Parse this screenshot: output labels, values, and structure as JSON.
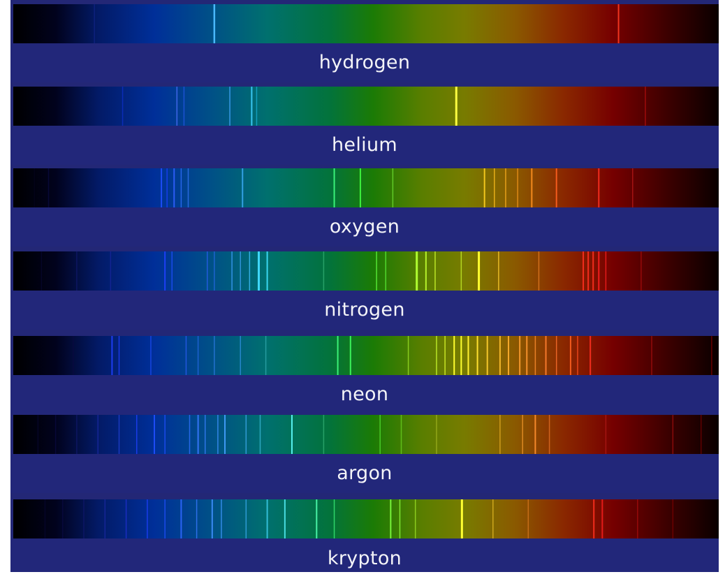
{
  "title": "",
  "spectra": [
    {
      "name": "hydrogen",
      "lines": [
        {
          "pos": 0.285,
          "color": "#4ab8ff",
          "width": 2.5,
          "opacity": 1.0
        },
        {
          "pos": 0.858,
          "color": "#ff3a22",
          "width": 2.0,
          "opacity": 0.9
        },
        {
          "pos": 0.115,
          "color": "#1a2a9a",
          "width": 1.5,
          "opacity": 0.5
        }
      ]
    },
    {
      "name": "helium",
      "lines": [
        {
          "pos": 0.155,
          "color": "#1030d0",
          "width": 1.5,
          "opacity": 0.7
        },
        {
          "pos": 0.232,
          "color": "#4f6fff",
          "width": 1.5,
          "opacity": 0.8
        },
        {
          "pos": 0.242,
          "color": "#2f5fff",
          "width": 1.5,
          "opacity": 0.6
        },
        {
          "pos": 0.307,
          "color": "#45a8ff",
          "width": 1.5,
          "opacity": 0.8
        },
        {
          "pos": 0.338,
          "color": "#3fd0ff",
          "width": 2.0,
          "opacity": 0.9
        },
        {
          "pos": 0.345,
          "color": "#20c0ef",
          "width": 1.5,
          "opacity": 0.6
        },
        {
          "pos": 0.628,
          "color": "#ffff40",
          "width": 3.0,
          "opacity": 1.0
        },
        {
          "pos": 0.896,
          "color": "#d01010",
          "width": 1.5,
          "opacity": 0.6
        }
      ]
    },
    {
      "name": "oxygen",
      "lines": [
        {
          "pos": 0.03,
          "color": "#03021a",
          "width": 1.5,
          "opacity": 0.9
        },
        {
          "pos": 0.05,
          "color": "#0a0a40",
          "width": 1.5,
          "opacity": 0.8
        },
        {
          "pos": 0.21,
          "color": "#2050ff",
          "width": 2.0,
          "opacity": 0.9
        },
        {
          "pos": 0.218,
          "color": "#1a40ff",
          "width": 1.5,
          "opacity": 0.8
        },
        {
          "pos": 0.228,
          "color": "#3060ff",
          "width": 2.0,
          "opacity": 0.9
        },
        {
          "pos": 0.238,
          "color": "#3070ff",
          "width": 1.5,
          "opacity": 0.8
        },
        {
          "pos": 0.248,
          "color": "#3878ff",
          "width": 1.5,
          "opacity": 0.7
        },
        {
          "pos": 0.325,
          "color": "#3fb0ff",
          "width": 2.0,
          "opacity": 0.8
        },
        {
          "pos": 0.455,
          "color": "#40ff80",
          "width": 2.0,
          "opacity": 0.9
        },
        {
          "pos": 0.492,
          "color": "#40ff40",
          "width": 2.0,
          "opacity": 0.9
        },
        {
          "pos": 0.538,
          "color": "#80ff40",
          "width": 1.5,
          "opacity": 0.6
        },
        {
          "pos": 0.668,
          "color": "#ffd020",
          "width": 2.0,
          "opacity": 0.9
        },
        {
          "pos": 0.682,
          "color": "#ffc020",
          "width": 1.5,
          "opacity": 0.8
        },
        {
          "pos": 0.698,
          "color": "#ffb020",
          "width": 1.5,
          "opacity": 0.8
        },
        {
          "pos": 0.715,
          "color": "#ffa020",
          "width": 1.5,
          "opacity": 0.7
        },
        {
          "pos": 0.735,
          "color": "#ff9020",
          "width": 2.0,
          "opacity": 0.9
        },
        {
          "pos": 0.77,
          "color": "#ff6020",
          "width": 2.0,
          "opacity": 0.9
        },
        {
          "pos": 0.83,
          "color": "#ff3020",
          "width": 2.0,
          "opacity": 0.9
        },
        {
          "pos": 0.878,
          "color": "#d02020",
          "width": 1.5,
          "opacity": 0.6
        }
      ]
    },
    {
      "name": "nitrogen",
      "lines": [
        {
          "pos": 0.04,
          "color": "#05052a",
          "width": 1.5,
          "opacity": 0.9
        },
        {
          "pos": 0.09,
          "color": "#10186a",
          "width": 1.5,
          "opacity": 0.8
        },
        {
          "pos": 0.138,
          "color": "#1a25a0",
          "width": 1.5,
          "opacity": 0.7
        },
        {
          "pos": 0.215,
          "color": "#2040ff",
          "width": 2.0,
          "opacity": 0.9
        },
        {
          "pos": 0.225,
          "color": "#2050ff",
          "width": 1.5,
          "opacity": 0.8
        },
        {
          "pos": 0.275,
          "color": "#3060ff",
          "width": 1.5,
          "opacity": 0.7
        },
        {
          "pos": 0.285,
          "color": "#3070ff",
          "width": 1.5,
          "opacity": 0.6
        },
        {
          "pos": 0.31,
          "color": "#40a0ff",
          "width": 1.5,
          "opacity": 0.8
        },
        {
          "pos": 0.322,
          "color": "#45a8ff",
          "width": 1.5,
          "opacity": 0.7
        },
        {
          "pos": 0.335,
          "color": "#40c0ff",
          "width": 1.5,
          "opacity": 0.8
        },
        {
          "pos": 0.348,
          "color": "#40d8ff",
          "width": 3.0,
          "opacity": 1.0
        },
        {
          "pos": 0.36,
          "color": "#40e0ff",
          "width": 2.0,
          "opacity": 0.9
        },
        {
          "pos": 0.44,
          "color": "#40c080",
          "width": 1.5,
          "opacity": 0.6
        },
        {
          "pos": 0.515,
          "color": "#60ff40",
          "width": 1.5,
          "opacity": 0.8
        },
        {
          "pos": 0.528,
          "color": "#60ff40",
          "width": 1.5,
          "opacity": 0.7
        },
        {
          "pos": 0.572,
          "color": "#b0ff30",
          "width": 3.0,
          "opacity": 1.0
        },
        {
          "pos": 0.585,
          "color": "#c0ff30",
          "width": 2.0,
          "opacity": 0.9
        },
        {
          "pos": 0.598,
          "color": "#d0ff30",
          "width": 1.5,
          "opacity": 0.8
        },
        {
          "pos": 0.635,
          "color": "#d0ff30",
          "width": 1.5,
          "opacity": 0.7
        },
        {
          "pos": 0.66,
          "color": "#ffff30",
          "width": 3.0,
          "opacity": 1.0
        },
        {
          "pos": 0.688,
          "color": "#ffd030",
          "width": 1.5,
          "opacity": 0.8
        },
        {
          "pos": 0.745,
          "color": "#ff9030",
          "width": 1.5,
          "opacity": 0.6
        },
        {
          "pos": 0.808,
          "color": "#ff3020",
          "width": 2.0,
          "opacity": 0.9
        },
        {
          "pos": 0.815,
          "color": "#ff3020",
          "width": 2.0,
          "opacity": 0.9
        },
        {
          "pos": 0.822,
          "color": "#ff3020",
          "width": 2.0,
          "opacity": 0.9
        },
        {
          "pos": 0.83,
          "color": "#ff2020",
          "width": 2.0,
          "opacity": 0.9
        },
        {
          "pos": 0.84,
          "color": "#ff2020",
          "width": 1.5,
          "opacity": 0.8
        },
        {
          "pos": 0.89,
          "color": "#c01010",
          "width": 1.5,
          "opacity": 0.6
        }
      ]
    },
    {
      "name": "neon",
      "lines": [
        {
          "pos": 0.085,
          "color": "#0a0a40",
          "width": 1.5,
          "opacity": 0.8
        },
        {
          "pos": 0.14,
          "color": "#2040ff",
          "width": 2.0,
          "opacity": 0.9
        },
        {
          "pos": 0.15,
          "color": "#2040ff",
          "width": 1.5,
          "opacity": 0.8
        },
        {
          "pos": 0.195,
          "color": "#2050ff",
          "width": 1.5,
          "opacity": 0.7
        },
        {
          "pos": 0.245,
          "color": "#3060ff",
          "width": 1.5,
          "opacity": 0.7
        },
        {
          "pos": 0.262,
          "color": "#3070ff",
          "width": 1.5,
          "opacity": 0.6
        },
        {
          "pos": 0.285,
          "color": "#3888ff",
          "width": 1.5,
          "opacity": 0.6
        },
        {
          "pos": 0.322,
          "color": "#40a0ff",
          "width": 1.5,
          "opacity": 0.6
        },
        {
          "pos": 0.358,
          "color": "#40b8c0",
          "width": 1.5,
          "opacity": 0.6
        },
        {
          "pos": 0.46,
          "color": "#40ff80",
          "width": 2.0,
          "opacity": 0.9
        },
        {
          "pos": 0.478,
          "color": "#40ff60",
          "width": 2.0,
          "opacity": 0.9
        },
        {
          "pos": 0.56,
          "color": "#b0ff30",
          "width": 1.5,
          "opacity": 0.6
        },
        {
          "pos": 0.6,
          "color": "#d0ff30",
          "width": 1.5,
          "opacity": 0.8
        },
        {
          "pos": 0.612,
          "color": "#e0ff30",
          "width": 1.5,
          "opacity": 0.8
        },
        {
          "pos": 0.625,
          "color": "#ffff30",
          "width": 2.0,
          "opacity": 1.0
        },
        {
          "pos": 0.635,
          "color": "#ffff30",
          "width": 2.0,
          "opacity": 1.0
        },
        {
          "pos": 0.645,
          "color": "#fff030",
          "width": 2.0,
          "opacity": 1.0
        },
        {
          "pos": 0.658,
          "color": "#ffe030",
          "width": 2.0,
          "opacity": 1.0
        },
        {
          "pos": 0.672,
          "color": "#ffd030",
          "width": 2.0,
          "opacity": 0.9
        },
        {
          "pos": 0.69,
          "color": "#ffc030",
          "width": 2.0,
          "opacity": 0.9
        },
        {
          "pos": 0.702,
          "color": "#ffb030",
          "width": 2.0,
          "opacity": 0.9
        },
        {
          "pos": 0.718,
          "color": "#ffa030",
          "width": 2.0,
          "opacity": 0.9
        },
        {
          "pos": 0.728,
          "color": "#ff9830",
          "width": 2.0,
          "opacity": 0.9
        },
        {
          "pos": 0.74,
          "color": "#ff9030",
          "width": 1.5,
          "opacity": 0.8
        },
        {
          "pos": 0.755,
          "color": "#ff8030",
          "width": 2.0,
          "opacity": 0.9
        },
        {
          "pos": 0.77,
          "color": "#ff7030",
          "width": 1.5,
          "opacity": 0.8
        },
        {
          "pos": 0.79,
          "color": "#ff6020",
          "width": 2.0,
          "opacity": 0.9
        },
        {
          "pos": 0.8,
          "color": "#ff5020",
          "width": 1.5,
          "opacity": 0.8
        },
        {
          "pos": 0.818,
          "color": "#ff3020",
          "width": 2.0,
          "opacity": 0.9
        },
        {
          "pos": 0.905,
          "color": "#c01010",
          "width": 1.5,
          "opacity": 0.6
        },
        {
          "pos": 0.99,
          "color": "#a00000",
          "width": 1.5,
          "opacity": 0.6
        }
      ]
    },
    {
      "name": "argon",
      "lines": [
        {
          "pos": 0.035,
          "color": "#05052a",
          "width": 1.5,
          "opacity": 0.9
        },
        {
          "pos": 0.06,
          "color": "#0a0a40",
          "width": 1.5,
          "opacity": 0.8
        },
        {
          "pos": 0.09,
          "color": "#10186a",
          "width": 1.5,
          "opacity": 0.8
        },
        {
          "pos": 0.12,
          "color": "#1a28a0",
          "width": 1.5,
          "opacity": 0.8
        },
        {
          "pos": 0.15,
          "color": "#2040d0",
          "width": 1.5,
          "opacity": 0.8
        },
        {
          "pos": 0.175,
          "color": "#2040ff",
          "width": 1.5,
          "opacity": 0.8
        },
        {
          "pos": 0.2,
          "color": "#2050ff",
          "width": 2.0,
          "opacity": 0.9
        },
        {
          "pos": 0.215,
          "color": "#2050ff",
          "width": 1.5,
          "opacity": 0.8
        },
        {
          "pos": 0.25,
          "color": "#3070ff",
          "width": 1.5,
          "opacity": 0.8
        },
        {
          "pos": 0.262,
          "color": "#3878ff",
          "width": 2.0,
          "opacity": 0.9
        },
        {
          "pos": 0.272,
          "color": "#3880ff",
          "width": 1.5,
          "opacity": 0.8
        },
        {
          "pos": 0.29,
          "color": "#4090ff",
          "width": 1.5,
          "opacity": 0.8
        },
        {
          "pos": 0.3,
          "color": "#45a0ff",
          "width": 2.0,
          "opacity": 0.9
        },
        {
          "pos": 0.33,
          "color": "#45b0ff",
          "width": 1.5,
          "opacity": 0.7
        },
        {
          "pos": 0.35,
          "color": "#40c0e0",
          "width": 1.5,
          "opacity": 0.7
        },
        {
          "pos": 0.395,
          "color": "#60ffff",
          "width": 2.0,
          "opacity": 0.9
        },
        {
          "pos": 0.44,
          "color": "#40c080",
          "width": 1.5,
          "opacity": 0.6
        },
        {
          "pos": 0.52,
          "color": "#60ff40",
          "width": 1.5,
          "opacity": 0.6
        },
        {
          "pos": 0.55,
          "color": "#80ff30",
          "width": 1.5,
          "opacity": 0.5
        },
        {
          "pos": 0.6,
          "color": "#c0d030",
          "width": 1.5,
          "opacity": 0.5
        },
        {
          "pos": 0.69,
          "color": "#ffc030",
          "width": 1.5,
          "opacity": 0.6
        },
        {
          "pos": 0.722,
          "color": "#ffa030",
          "width": 1.5,
          "opacity": 0.7
        },
        {
          "pos": 0.74,
          "color": "#ff9030",
          "width": 2.0,
          "opacity": 0.9
        },
        {
          "pos": 0.76,
          "color": "#ff8030",
          "width": 1.5,
          "opacity": 0.6
        },
        {
          "pos": 0.84,
          "color": "#c02020",
          "width": 1.5,
          "opacity": 0.6
        },
        {
          "pos": 0.935,
          "color": "#c01010",
          "width": 1.5,
          "opacity": 0.6
        },
        {
          "pos": 0.975,
          "color": "#a00000",
          "width": 1.5,
          "opacity": 0.5
        }
      ]
    },
    {
      "name": "krypton",
      "lines": [
        {
          "pos": 0.045,
          "color": "#05052a",
          "width": 1.5,
          "opacity": 0.9
        },
        {
          "pos": 0.07,
          "color": "#0a0a40",
          "width": 1.5,
          "opacity": 0.8
        },
        {
          "pos": 0.1,
          "color": "#10186a",
          "width": 1.5,
          "opacity": 0.8
        },
        {
          "pos": 0.13,
          "color": "#1a28a0",
          "width": 1.5,
          "opacity": 0.8
        },
        {
          "pos": 0.16,
          "color": "#2030d0",
          "width": 1.5,
          "opacity": 0.8
        },
        {
          "pos": 0.19,
          "color": "#2040ff",
          "width": 1.5,
          "opacity": 0.8
        },
        {
          "pos": 0.215,
          "color": "#2050ff",
          "width": 1.5,
          "opacity": 0.8
        },
        {
          "pos": 0.238,
          "color": "#3068ff",
          "width": 2.0,
          "opacity": 0.9
        },
        {
          "pos": 0.26,
          "color": "#3878ff",
          "width": 1.5,
          "opacity": 0.8
        },
        {
          "pos": 0.282,
          "color": "#4090ff",
          "width": 2.0,
          "opacity": 0.9
        },
        {
          "pos": 0.295,
          "color": "#4098ff",
          "width": 1.5,
          "opacity": 0.8
        },
        {
          "pos": 0.33,
          "color": "#40b0ff",
          "width": 1.5,
          "opacity": 0.7
        },
        {
          "pos": 0.36,
          "color": "#40d0f0",
          "width": 2.0,
          "opacity": 0.8
        },
        {
          "pos": 0.385,
          "color": "#50e8f0",
          "width": 2.0,
          "opacity": 0.9
        },
        {
          "pos": 0.43,
          "color": "#50ffb0",
          "width": 2.0,
          "opacity": 0.9
        },
        {
          "pos": 0.455,
          "color": "#40ff80",
          "width": 1.5,
          "opacity": 0.7
        },
        {
          "pos": 0.535,
          "color": "#80ff40",
          "width": 2.0,
          "opacity": 0.9
        },
        {
          "pos": 0.548,
          "color": "#90ff40",
          "width": 1.5,
          "opacity": 0.8
        },
        {
          "pos": 0.57,
          "color": "#b0ff30",
          "width": 1.5,
          "opacity": 0.6
        },
        {
          "pos": 0.636,
          "color": "#ffff30",
          "width": 3.0,
          "opacity": 1.0
        },
        {
          "pos": 0.68,
          "color": "#ffd030",
          "width": 1.5,
          "opacity": 0.6
        },
        {
          "pos": 0.73,
          "color": "#ff9030",
          "width": 1.5,
          "opacity": 0.5
        },
        {
          "pos": 0.823,
          "color": "#ff3020",
          "width": 2.0,
          "opacity": 0.9
        },
        {
          "pos": 0.835,
          "color": "#ff2020",
          "width": 2.0,
          "opacity": 0.8
        },
        {
          "pos": 0.885,
          "color": "#c01010",
          "width": 1.5,
          "opacity": 0.6
        },
        {
          "pos": 0.935,
          "color": "#a00000",
          "width": 1.5,
          "opacity": 0.5
        }
      ]
    }
  ],
  "colors": {
    "label_background": "#22277a",
    "label_text": "#f4f4f8"
  }
}
